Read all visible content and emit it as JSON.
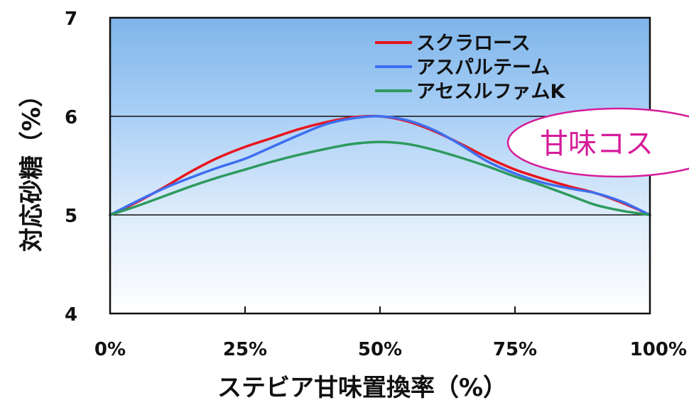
{
  "chart_data": {
    "type": "line",
    "title": "",
    "xlabel": "ステビア甘味置換率（%）",
    "ylabel": "対応砂糖（%）",
    "x": [
      0,
      5,
      10,
      15,
      20,
      25,
      30,
      35,
      40,
      45,
      50,
      55,
      60,
      65,
      70,
      75,
      80,
      85,
      90,
      95,
      100
    ],
    "x_tick_labels": [
      "0%",
      "25%",
      "50%",
      "75%",
      "100%"
    ],
    "x_ticks": [
      0,
      25,
      50,
      75,
      100
    ],
    "y_ticks": [
      4,
      5,
      6,
      7
    ],
    "y_tick_labels": [
      "4",
      "5",
      "6",
      "7"
    ],
    "xlim": [
      0,
      100
    ],
    "ylim": [
      4,
      7
    ],
    "grid": "horizontal",
    "legend_position": "top-right",
    "series": [
      {
        "name": "スクラロース",
        "color": "#e8141c",
        "values": [
          5.0,
          5.13,
          5.28,
          5.44,
          5.58,
          5.69,
          5.78,
          5.87,
          5.94,
          5.99,
          6.0,
          5.95,
          5.85,
          5.72,
          5.58,
          5.46,
          5.37,
          5.29,
          5.22,
          5.12,
          5.0
        ]
      },
      {
        "name": "アスパルテーム",
        "color": "#3d6ef0",
        "values": [
          5.0,
          5.14,
          5.27,
          5.38,
          5.48,
          5.57,
          5.69,
          5.81,
          5.92,
          5.98,
          6.0,
          5.96,
          5.86,
          5.71,
          5.54,
          5.42,
          5.33,
          5.27,
          5.22,
          5.13,
          5.0
        ]
      },
      {
        "name": "アセスルファムK",
        "color": "#2e9a5e",
        "values": [
          5.0,
          5.09,
          5.19,
          5.29,
          5.38,
          5.46,
          5.54,
          5.61,
          5.67,
          5.72,
          5.74,
          5.72,
          5.66,
          5.58,
          5.49,
          5.39,
          5.3,
          5.2,
          5.1,
          5.04,
          5.0
        ]
      }
    ],
    "callout_text": "甘味コス"
  }
}
